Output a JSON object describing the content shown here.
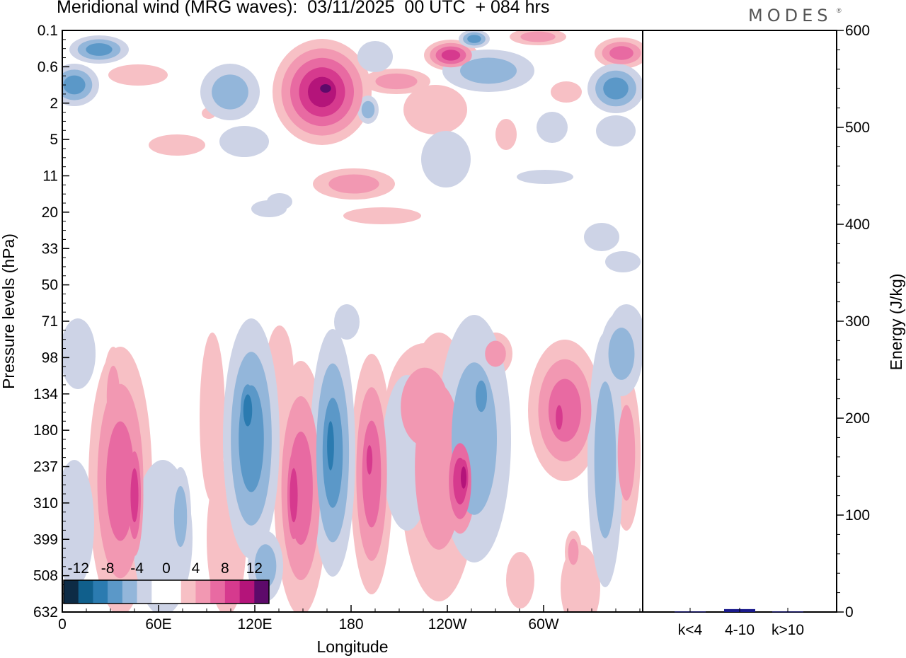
{
  "title": "Meridional wind (MRG waves):  03/11/2025  00 UTC  + 084 hrs",
  "brand": "MODES",
  "brand_mark": "®",
  "chart_data": [
    {
      "type": "heatmap",
      "title": "Meridional wind (MRG waves)",
      "xlabel": "Longitude",
      "ylabel": "Pressure levels (hPa)",
      "x_ticks": [
        "0",
        "60E",
        "120E",
        "180",
        "120W",
        "60W"
      ],
      "y_ticks": [
        "0.1",
        "0.6",
        "2",
        "5",
        "11",
        "20",
        "33",
        "50",
        "71",
        "98",
        "134",
        "180",
        "237",
        "310",
        "399",
        "508",
        "632"
      ],
      "colorbar": {
        "labels": [
          "-12",
          "-8",
          "-4",
          "0",
          "4",
          "8",
          "12"
        ],
        "levels": [
          -14,
          -12,
          -10,
          -8,
          -6,
          -4,
          -2,
          0,
          2,
          4,
          6,
          8,
          10,
          12,
          14
        ],
        "colors": [
          "#0d2b45",
          "#105f8c",
          "#2b7bb0",
          "#5b98c8",
          "#93b6da",
          "#cdd3e6",
          "#ffffff",
          "#ffffff",
          "#f7c0c5",
          "#f298b2",
          "#e86aa2",
          "#d63a8e",
          "#b4147a",
          "#5d0a6a"
        ]
      }
    },
    {
      "type": "bar",
      "ylabel": "Energy (J/kg)",
      "categories": [
        "k<4",
        "4-10",
        "k>10"
      ],
      "values": [
        0.5,
        3,
        0.5
      ],
      "ylim": [
        0,
        600
      ],
      "y_ticks": [
        "0",
        "100",
        "200",
        "300",
        "400",
        "500",
        "600"
      ],
      "bar_color": "#1a1a8c"
    }
  ]
}
